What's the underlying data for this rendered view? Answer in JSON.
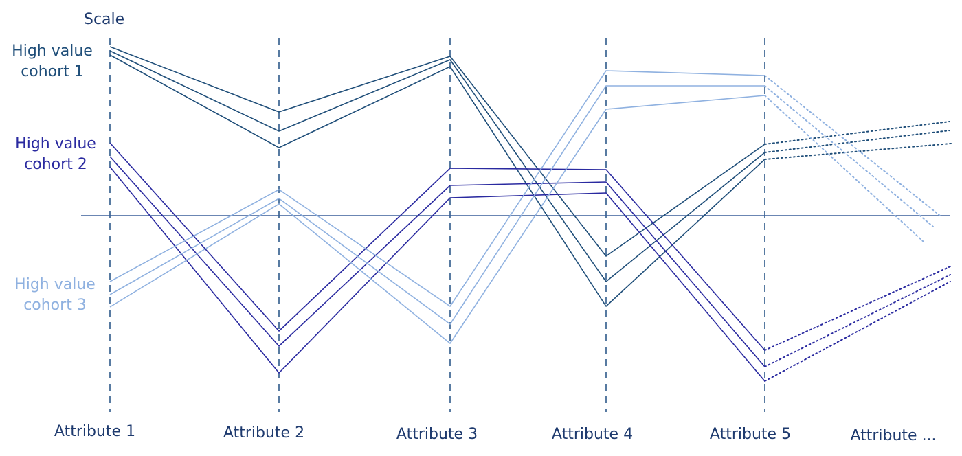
{
  "scale_label": "Scale",
  "axes": [
    {
      "label": "Attribute 1"
    },
    {
      "label": "Attribute 2"
    },
    {
      "label": "Attribute 3"
    },
    {
      "label": "Attribute 4"
    },
    {
      "label": "Attribute 5"
    },
    {
      "label": "Attribute ..."
    }
  ],
  "cohorts": [
    {
      "label_lines": [
        "High value",
        "cohort 1"
      ],
      "color": "#1f4e79"
    },
    {
      "label_lines": [
        "High value",
        "cohort 2"
      ],
      "color": "#2a2aa0"
    },
    {
      "label_lines": [
        "High value",
        "cohort 3"
      ],
      "color": "#8fb1e0"
    }
  ],
  "axis_color": "#2e5a8a",
  "baseline_color": "#3a5f9a"
}
